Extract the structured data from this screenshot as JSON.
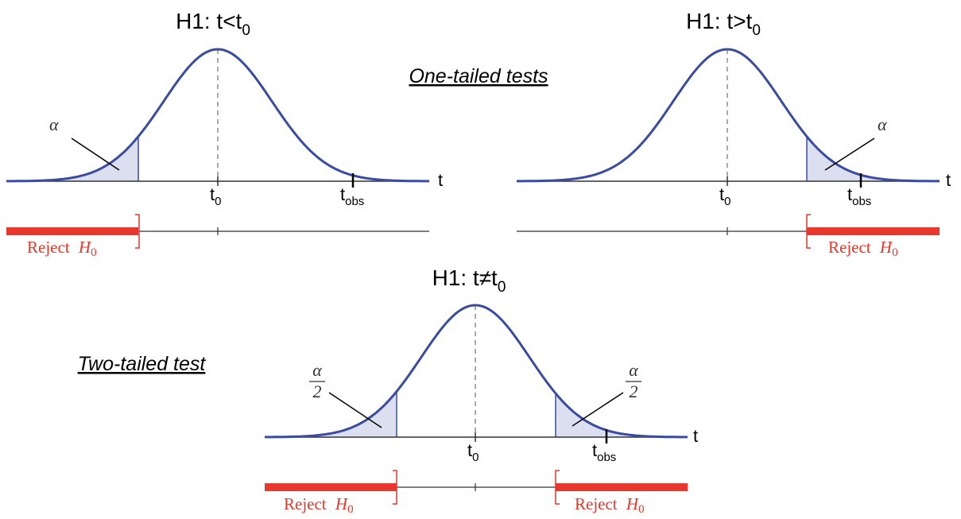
{
  "headings": {
    "one_tailed": "One-tailed tests",
    "two_tailed": "Two-tailed test"
  },
  "panels": {
    "left": {
      "title_main": "H1: t<t",
      "title_sub": "0",
      "axis_var": "t",
      "t0_main": "t",
      "t0_sub": "0",
      "tobs_main": "t",
      "tobs_sub": "obs",
      "alpha": "α",
      "reject_text": "Reject ",
      "reject_h": "H",
      "reject_sub": "0"
    },
    "right": {
      "title_main": "H1: t>t",
      "title_sub": "0",
      "axis_var": "t",
      "t0_main": "t",
      "t0_sub": "0",
      "tobs_main": "t",
      "tobs_sub": "obs",
      "alpha": "α",
      "reject_text": "Reject ",
      "reject_h": "H",
      "reject_sub": "0"
    },
    "bottom": {
      "title_main": "H1: t≠t",
      "title_sub": "0",
      "axis_var": "t",
      "t0_main": "t",
      "t0_sub": "0",
      "tobs_main": "t",
      "tobs_sub": "obs",
      "alpha_num": "α",
      "alpha_den": "2",
      "reject_text": "Reject ",
      "reject_h": "H",
      "reject_sub": "0"
    }
  },
  "colors": {
    "curve": "#3a4ba3",
    "shade": "#dcdff0",
    "reject": "#e8372c",
    "axis": "#333333"
  }
}
